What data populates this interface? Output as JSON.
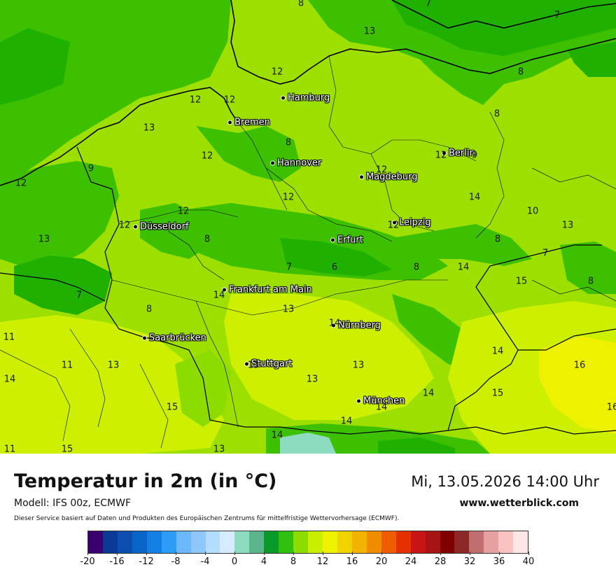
{
  "map": {
    "cities": [
      {
        "name": "Hamburg"
      },
      {
        "name": "Bremen"
      },
      {
        "name": "Hannover"
      },
      {
        "name": "Berlin"
      },
      {
        "name": "Magdeburg"
      },
      {
        "name": "Düsseldorf"
      },
      {
        "name": "Leipzig"
      },
      {
        "name": "Erfurt"
      },
      {
        "name": "Frankfurt am Main"
      },
      {
        "name": "Nürnberg"
      },
      {
        "name": "Saarbrücken"
      },
      {
        "name": "Stuttgart"
      },
      {
        "name": "München"
      }
    ],
    "isolines": [
      "8",
      "7",
      "13",
      "12",
      "7",
      "12",
      "12",
      "13",
      "8",
      "12",
      "8",
      "12",
      "9",
      "12",
      "12",
      "8",
      "12",
      "14",
      "10",
      "12",
      "13",
      "12",
      "8",
      "13",
      "7",
      "8",
      "6",
      "8",
      "14",
      "7",
      "15",
      "8",
      "14",
      "7",
      "13",
      "8",
      "14",
      "11",
      "14",
      "11",
      "13",
      "16",
      "14",
      "13",
      "13",
      "14",
      "15",
      "15",
      "14",
      "14",
      "15",
      "11",
      "13",
      "14",
      "16",
      "13",
      "12",
      "9"
    ],
    "colors": {
      "deep_green": "#1fb000",
      "green": "#3cc000",
      "lime": "#9de000",
      "yellow_green": "#cdf000",
      "yellow": "#eef200"
    }
  },
  "footer": {
    "title": "Temperatur in 2m (in °C)",
    "datetime": "Mi, 13.05.2026 14:00 Uhr",
    "model": "Modell: IFS 00z, ECMWF",
    "site": "www.wetterblick.com",
    "disclaimer": "Dieser Service basiert auf Daten und Produkten des Europäischen Zentrums für mittelfristige Wettervorhersage (ECMWF)."
  },
  "legend": {
    "ticks": [
      "-20",
      "-16",
      "-12",
      "-8",
      "-4",
      "0",
      "4",
      "8",
      "12",
      "16",
      "20",
      "24",
      "28",
      "32",
      "36",
      "40"
    ],
    "colors": [
      "#3a006e",
      "#0a3a96",
      "#0a4fae",
      "#0a65c8",
      "#1480e6",
      "#2c9cf4",
      "#6ab7fa",
      "#8ec8fb",
      "#b4dcfd",
      "#d6ecfe",
      "#8edcc0",
      "#5ab48c",
      "#0a9a28",
      "#30c010",
      "#8cdc00",
      "#c8ee00",
      "#eef200",
      "#f0d400",
      "#f2b400",
      "#f08c00",
      "#ee5e00",
      "#e63000",
      "#c81414",
      "#a81414",
      "#800000",
      "#8c2828",
      "#c06e6e",
      "#e6a0a0",
      "#fac3c3",
      "#fde6e6"
    ]
  }
}
